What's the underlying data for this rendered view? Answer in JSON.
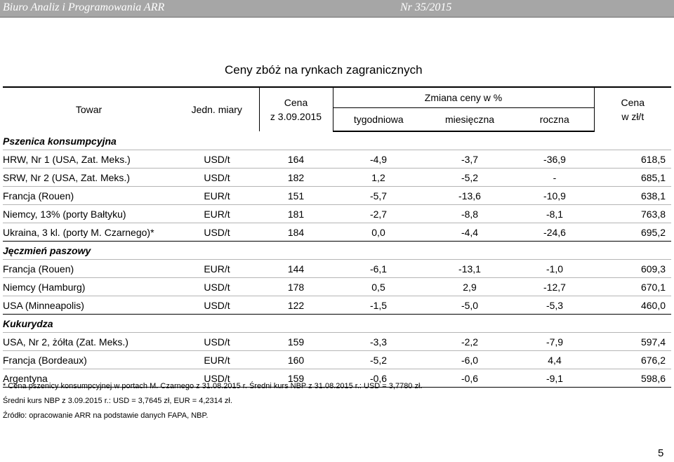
{
  "header": {
    "left_text": "Biuro Analiz i Programowania ARR",
    "right_text": "Nr 35/2015"
  },
  "title": "Ceny zbóż na rynkach zagranicznych",
  "table": {
    "col_towar": "Towar",
    "col_jedn": "Jedn. miary",
    "col_cena_line1": "Cena",
    "col_cena_line2": "z 3.09.2015",
    "col_zmiana": "Zmiana ceny w %",
    "col_tyg": "tygodniowa",
    "col_mies": "miesięczna",
    "col_rocz": "roczna",
    "col_pln_line1": "Cena",
    "col_pln_line2": "w zł/t",
    "sections": [
      {
        "name": "Pszenica konsumpcyjna",
        "rows": [
          {
            "towar": "HRW, Nr 1 (USA, Zat. Meks.)",
            "jedn": "USD/t",
            "cena": "164",
            "tyg": "-4,9",
            "mies": "-3,7",
            "rocz": "-36,9",
            "pln": "618,5"
          },
          {
            "towar": "SRW, Nr 2 (USA, Zat. Meks.)",
            "jedn": "USD/t",
            "cena": "182",
            "tyg": "1,2",
            "mies": "-5,2",
            "rocz": "-",
            "pln": "685,1"
          },
          {
            "towar": "Francja (Rouen)",
            "jedn": "EUR/t",
            "cena": "151",
            "tyg": "-5,7",
            "mies": "-13,6",
            "rocz": "-10,9",
            "pln": "638,1"
          },
          {
            "towar": "Niemcy, 13% (porty Bałtyku)",
            "jedn": "EUR/t",
            "cena": "181",
            "tyg": "-2,7",
            "mies": "-8,8",
            "rocz": "-8,1",
            "pln": "763,8"
          },
          {
            "towar": "Ukraina, 3 kl.  (porty M. Czarnego)*",
            "jedn": "USD/t",
            "cena": "184",
            "tyg": "0,0",
            "mies": "-4,4",
            "rocz": "-24,6",
            "pln": "695,2"
          }
        ]
      },
      {
        "name": "Jęczmień paszowy",
        "rows": [
          {
            "towar": "Francja (Rouen)",
            "jedn": "EUR/t",
            "cena": "144",
            "tyg": "-6,1",
            "mies": "-13,1",
            "rocz": "-1,0",
            "pln": "609,3"
          },
          {
            "towar": "Niemcy (Hamburg)",
            "jedn": "USD/t",
            "cena": "178",
            "tyg": "0,5",
            "mies": "2,9",
            "rocz": "-12,7",
            "pln": "670,1"
          },
          {
            "towar": "USA (Minneapolis)",
            "jedn": "USD/t",
            "cena": "122",
            "tyg": "-1,5",
            "mies": "-5,0",
            "rocz": "-5,3",
            "pln": "460,0"
          }
        ]
      },
      {
        "name": "Kukurydza",
        "rows": [
          {
            "towar": "USA, Nr 2, żółta (Zat. Meks.)",
            "jedn": "USD/t",
            "cena": "159",
            "tyg": "-3,3",
            "mies": "-2,2",
            "rocz": "-7,9",
            "pln": "597,4"
          },
          {
            "towar": "Francja (Bordeaux)",
            "jedn": "EUR/t",
            "cena": "160",
            "tyg": "-5,2",
            "mies": "-6,0",
            "rocz": "4,4",
            "pln": "676,2"
          },
          {
            "towar": "Argentyna",
            "jedn": "USD/t",
            "cena": "159",
            "tyg": "-0,6",
            "mies": "-0,6",
            "rocz": "-9,1",
            "pln": "598,6"
          }
        ]
      }
    ]
  },
  "notes": [
    "* Cena pszenicy konsumpcyjnej w portach M. Czarnego z 31.08.2015 r.  Średni kurs NBP z 31.08.2015 r.: USD = 3,7780 zł.",
    "Średni kurs NBP z 3.09.2015 r.: USD = 3,7645 zł, EUR = 4,2314 zł.",
    "Źródło: opracowanie ARR na podstawie danych FAPA, NBP."
  ],
  "page_number": "5"
}
